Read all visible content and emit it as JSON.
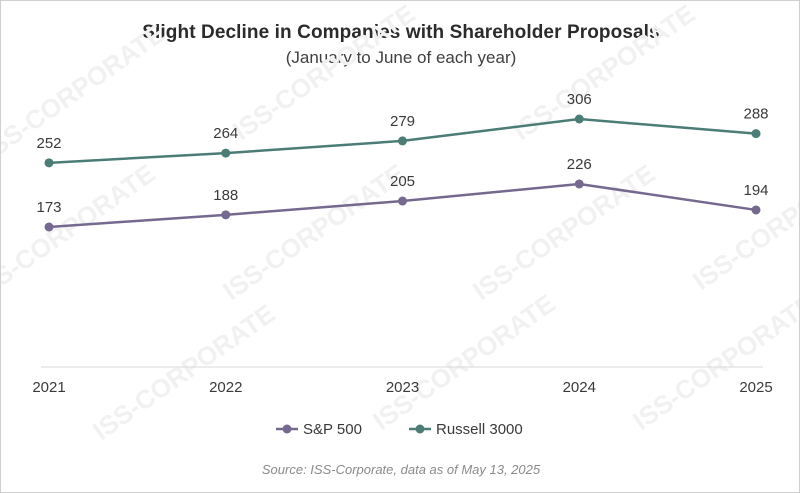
{
  "watermark_text": "ISS-CORPORATE",
  "chart_data": {
    "type": "line",
    "title": "Slight Decline in Companies with Shareholder Proposals",
    "subtitle": "(January to June of each year)",
    "categories": [
      "2021",
      "2022",
      "2023",
      "2024",
      "2025"
    ],
    "series": [
      {
        "name": "S&P 500",
        "values": [
          173,
          188,
          205,
          226,
          194
        ],
        "color": "#75698f"
      },
      {
        "name": "Russell 3000",
        "values": [
          252,
          264,
          279,
          306,
          288
        ],
        "color": "#4b7d76"
      }
    ],
    "xlabel": "",
    "ylabel": "",
    "ylim": [
      0,
      330
    ],
    "grid": false,
    "legend": "bottom",
    "data_labels": true,
    "source": "Source: ISS-Corporate, data as of May 13, 2025"
  }
}
